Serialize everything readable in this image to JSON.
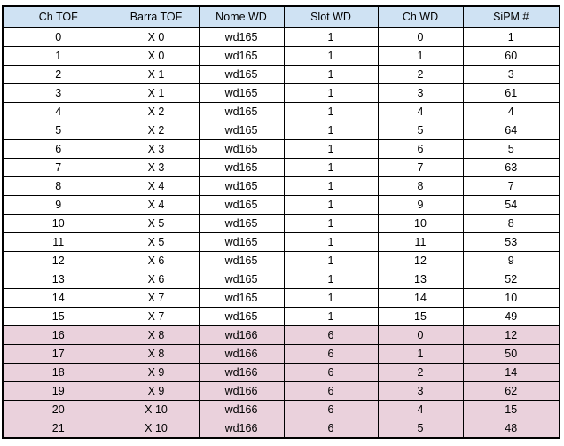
{
  "table": {
    "columns": [
      "Ch TOF",
      "Barra TOF",
      "Nome WD",
      "Slot WD",
      "Ch WD",
      "SiPM #"
    ],
    "rows": [
      {
        "ch_tof": "0",
        "barra_tof": "X 0",
        "nome_wd": "wd165",
        "slot_wd": "1",
        "ch_wd": "0",
        "sipm": "1",
        "group": "a"
      },
      {
        "ch_tof": "1",
        "barra_tof": "X 0",
        "nome_wd": "wd165",
        "slot_wd": "1",
        "ch_wd": "1",
        "sipm": "60",
        "group": "a"
      },
      {
        "ch_tof": "2",
        "barra_tof": "X 1",
        "nome_wd": "wd165",
        "slot_wd": "1",
        "ch_wd": "2",
        "sipm": "3",
        "group": "a"
      },
      {
        "ch_tof": "3",
        "barra_tof": "X 1",
        "nome_wd": "wd165",
        "slot_wd": "1",
        "ch_wd": "3",
        "sipm": "61",
        "group": "a"
      },
      {
        "ch_tof": "4",
        "barra_tof": "X 2",
        "nome_wd": "wd165",
        "slot_wd": "1",
        "ch_wd": "4",
        "sipm": "4",
        "group": "a"
      },
      {
        "ch_tof": "5",
        "barra_tof": "X 2",
        "nome_wd": "wd165",
        "slot_wd": "1",
        "ch_wd": "5",
        "sipm": "64",
        "group": "a"
      },
      {
        "ch_tof": "6",
        "barra_tof": "X 3",
        "nome_wd": "wd165",
        "slot_wd": "1",
        "ch_wd": "6",
        "sipm": "5",
        "group": "a"
      },
      {
        "ch_tof": "7",
        "barra_tof": "X 3",
        "nome_wd": "wd165",
        "slot_wd": "1",
        "ch_wd": "7",
        "sipm": "63",
        "group": "a"
      },
      {
        "ch_tof": "8",
        "barra_tof": "X 4",
        "nome_wd": "wd165",
        "slot_wd": "1",
        "ch_wd": "8",
        "sipm": "7",
        "group": "a"
      },
      {
        "ch_tof": "9",
        "barra_tof": "X 4",
        "nome_wd": "wd165",
        "slot_wd": "1",
        "ch_wd": "9",
        "sipm": "54",
        "group": "a"
      },
      {
        "ch_tof": "10",
        "barra_tof": "X 5",
        "nome_wd": "wd165",
        "slot_wd": "1",
        "ch_wd": "10",
        "sipm": "8",
        "group": "a"
      },
      {
        "ch_tof": "11",
        "barra_tof": "X 5",
        "nome_wd": "wd165",
        "slot_wd": "1",
        "ch_wd": "11",
        "sipm": "53",
        "group": "a"
      },
      {
        "ch_tof": "12",
        "barra_tof": "X 6",
        "nome_wd": "wd165",
        "slot_wd": "1",
        "ch_wd": "12",
        "sipm": "9",
        "group": "a"
      },
      {
        "ch_tof": "13",
        "barra_tof": "X 6",
        "nome_wd": "wd165",
        "slot_wd": "1",
        "ch_wd": "13",
        "sipm": "52",
        "group": "a"
      },
      {
        "ch_tof": "14",
        "barra_tof": "X 7",
        "nome_wd": "wd165",
        "slot_wd": "1",
        "ch_wd": "14",
        "sipm": "10",
        "group": "a"
      },
      {
        "ch_tof": "15",
        "barra_tof": "X 7",
        "nome_wd": "wd165",
        "slot_wd": "1",
        "ch_wd": "15",
        "sipm": "49",
        "group": "a"
      },
      {
        "ch_tof": "16",
        "barra_tof": "X 8",
        "nome_wd": "wd166",
        "slot_wd": "6",
        "ch_wd": "0",
        "sipm": "12",
        "group": "b"
      },
      {
        "ch_tof": "17",
        "barra_tof": "X 8",
        "nome_wd": "wd166",
        "slot_wd": "6",
        "ch_wd": "1",
        "sipm": "50",
        "group": "b"
      },
      {
        "ch_tof": "18",
        "barra_tof": "X 9",
        "nome_wd": "wd166",
        "slot_wd": "6",
        "ch_wd": "2",
        "sipm": "14",
        "group": "b"
      },
      {
        "ch_tof": "19",
        "barra_tof": "X 9",
        "nome_wd": "wd166",
        "slot_wd": "6",
        "ch_wd": "3",
        "sipm": "62",
        "group": "b"
      },
      {
        "ch_tof": "20",
        "barra_tof": "X 10",
        "nome_wd": "wd166",
        "slot_wd": "6",
        "ch_wd": "4",
        "sipm": "15",
        "group": "b"
      },
      {
        "ch_tof": "21",
        "barra_tof": "X 10",
        "nome_wd": "wd166",
        "slot_wd": "6",
        "ch_wd": "5",
        "sipm": "48",
        "group": "b"
      }
    ]
  },
  "colors": {
    "header_fill": "#cfe2f3",
    "group_b_fill": "#ead1dc",
    "border": "#000000"
  }
}
